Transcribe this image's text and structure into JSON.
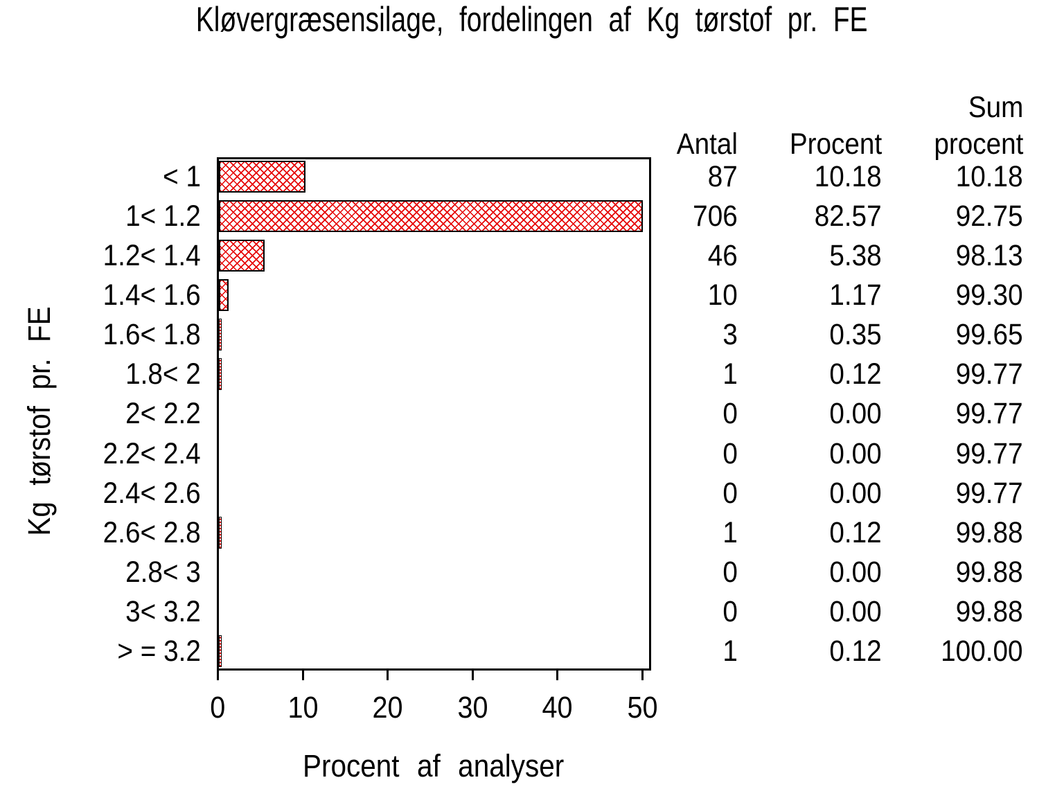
{
  "title": "Kløvergræsensilage, fordelingen af Kg tørstof pr. FE",
  "colors": {
    "hatch_red": "#e60000",
    "axis_black": "#000000",
    "background": "#ffffff"
  },
  "chart_data": {
    "type": "bar",
    "orientation": "horizontal",
    "title": "Kløvergræsensilage, fordelingen af Kg tørstof pr. FE",
    "xlabel": "Procent af analyser",
    "ylabel": "Kg tørstof pr. FE",
    "xlim": [
      0,
      50
    ],
    "xticks": [
      "0",
      "10",
      "20",
      "30",
      "40",
      "50"
    ],
    "grid": false,
    "bar_fill": "red diagonal crosshatch, black outline, clipped at axis max 50",
    "categories": [
      "< 1",
      "1< 1.2",
      "1.2< 1.4",
      "1.4< 1.6",
      "1.6< 1.8",
      "1.8< 2",
      "2< 2.2",
      "2.2< 2.4",
      "2.4< 2.6",
      "2.6< 2.8",
      "2.8< 3",
      "3< 3.2",
      "> = 3.2"
    ],
    "values_percent": [
      10.18,
      82.57,
      5.38,
      1.17,
      0.35,
      0.12,
      0,
      0,
      0,
      0.12,
      0,
      0,
      0.12
    ]
  },
  "table": {
    "headers": {
      "antal": "Antal",
      "procent": "Procent",
      "sum_line1": "Sum",
      "sum_line2": "procent"
    },
    "rows": [
      {
        "antal": "87",
        "procent": "10.18",
        "sum": "10.18"
      },
      {
        "antal": "706",
        "procent": "82.57",
        "sum": "92.75"
      },
      {
        "antal": "46",
        "procent": "5.38",
        "sum": "98.13"
      },
      {
        "antal": "10",
        "procent": "1.17",
        "sum": "99.30"
      },
      {
        "antal": "3",
        "procent": "0.35",
        "sum": "99.65"
      },
      {
        "antal": "1",
        "procent": "0.12",
        "sum": "99.77"
      },
      {
        "antal": "0",
        "procent": "0.00",
        "sum": "99.77"
      },
      {
        "antal": "0",
        "procent": "0.00",
        "sum": "99.77"
      },
      {
        "antal": "0",
        "procent": "0.00",
        "sum": "99.77"
      },
      {
        "antal": "1",
        "procent": "0.12",
        "sum": "99.88"
      },
      {
        "antal": "0",
        "procent": "0.00",
        "sum": "99.88"
      },
      {
        "antal": "0",
        "procent": "0.00",
        "sum": "99.88"
      },
      {
        "antal": "1",
        "procent": "0.12",
        "sum": "100.00"
      }
    ]
  }
}
